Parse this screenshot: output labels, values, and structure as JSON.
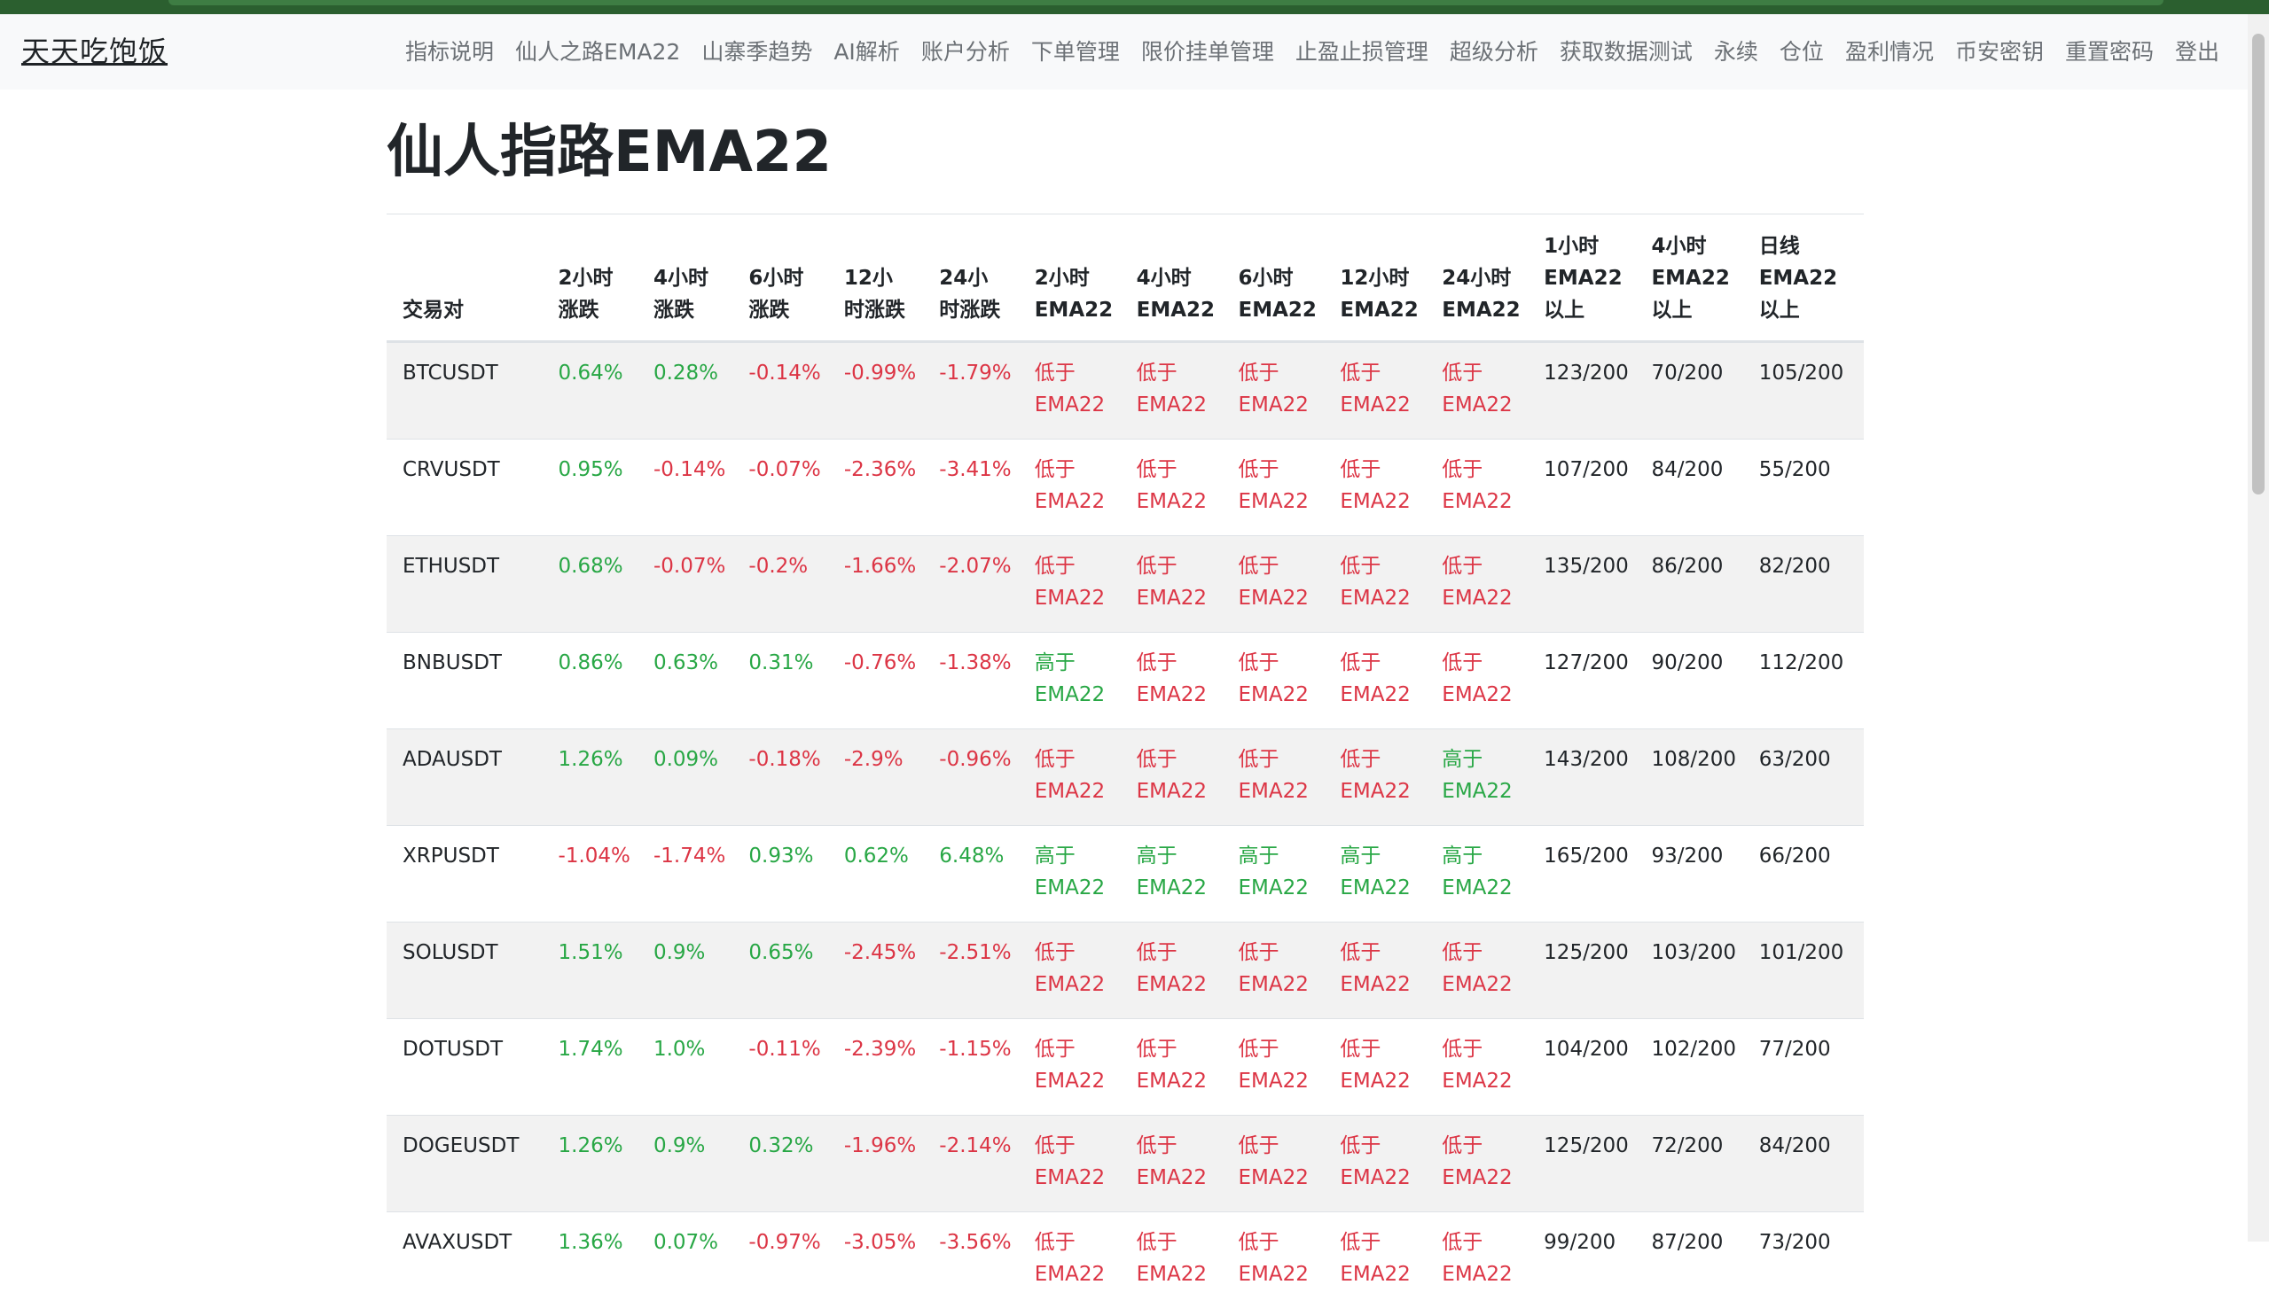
{
  "brand": "天天吃饱饭",
  "nav": [
    "指标说明",
    "仙人之路EMA22",
    "山寨季趋势",
    "AI解析",
    "账户分析",
    "下单管理",
    "限价挂单管理",
    "止盈止损管理",
    "超级分析",
    "获取数据测试",
    "永续",
    "仓位",
    "盈利情况",
    "币安密钥",
    "重置密码",
    "登出"
  ],
  "page_title": "仙人指路EMA22",
  "colors": {
    "positive": "#28a745",
    "negative": "#dc3545",
    "navbar_bg": "#f8f9fa",
    "top_strip": "#2b5f2f",
    "stripe": "#f2f2f2"
  },
  "table": {
    "headers": [
      [
        "交易对"
      ],
      [
        "2小时",
        "涨跌"
      ],
      [
        "4小时",
        "涨跌"
      ],
      [
        "6小时",
        "涨跌"
      ],
      [
        "12小",
        "时涨跌"
      ],
      [
        "24小",
        "时涨跌"
      ],
      [
        "2小时",
        "EMA22"
      ],
      [
        "4小时",
        "EMA22"
      ],
      [
        "6小时",
        "EMA22"
      ],
      [
        "12小时",
        "EMA22"
      ],
      [
        "24小时",
        "EMA22"
      ],
      [
        "1小时",
        "EMA22",
        "以上"
      ],
      [
        "4小时",
        "EMA22",
        "以上"
      ],
      [
        "日线",
        "EMA22",
        "以上"
      ]
    ],
    "status_labels": {
      "below": [
        "低于",
        "EMA22"
      ],
      "above": [
        "高于",
        "EMA22"
      ]
    },
    "rows": [
      {
        "pair": "BTCUSDT",
        "changes": [
          "0.64%",
          "0.28%",
          "-0.14%",
          "-0.99%",
          "-1.79%"
        ],
        "ema": [
          "below",
          "below",
          "below",
          "below",
          "below"
        ],
        "counts": [
          "123/200",
          "70/200",
          "105/200"
        ]
      },
      {
        "pair": "CRVUSDT",
        "changes": [
          "0.95%",
          "-0.14%",
          "-0.07%",
          "-2.36%",
          "-3.41%"
        ],
        "ema": [
          "below",
          "below",
          "below",
          "below",
          "below"
        ],
        "counts": [
          "107/200",
          "84/200",
          "55/200"
        ]
      },
      {
        "pair": "ETHUSDT",
        "changes": [
          "0.68%",
          "-0.07%",
          "-0.2%",
          "-1.66%",
          "-2.07%"
        ],
        "ema": [
          "below",
          "below",
          "below",
          "below",
          "below"
        ],
        "counts": [
          "135/200",
          "86/200",
          "82/200"
        ]
      },
      {
        "pair": "BNBUSDT",
        "changes": [
          "0.86%",
          "0.63%",
          "0.31%",
          "-0.76%",
          "-1.38%"
        ],
        "ema": [
          "above",
          "below",
          "below",
          "below",
          "below"
        ],
        "counts": [
          "127/200",
          "90/200",
          "112/200"
        ]
      },
      {
        "pair": "ADAUSDT",
        "changes": [
          "1.26%",
          "0.09%",
          "-0.18%",
          "-2.9%",
          "-0.96%"
        ],
        "ema": [
          "below",
          "below",
          "below",
          "below",
          "above"
        ],
        "counts": [
          "143/200",
          "108/200",
          "63/200"
        ]
      },
      {
        "pair": "XRPUSDT",
        "changes": [
          "-1.04%",
          "-1.74%",
          "0.93%",
          "0.62%",
          "6.48%"
        ],
        "ema": [
          "above",
          "above",
          "above",
          "above",
          "above"
        ],
        "counts": [
          "165/200",
          "93/200",
          "66/200"
        ]
      },
      {
        "pair": "SOLUSDT",
        "changes": [
          "1.51%",
          "0.9%",
          "0.65%",
          "-2.45%",
          "-2.51%"
        ],
        "ema": [
          "below",
          "below",
          "below",
          "below",
          "below"
        ],
        "counts": [
          "125/200",
          "103/200",
          "101/200"
        ]
      },
      {
        "pair": "DOTUSDT",
        "changes": [
          "1.74%",
          "1.0%",
          "-0.11%",
          "-2.39%",
          "-1.15%"
        ],
        "ema": [
          "below",
          "below",
          "below",
          "below",
          "below"
        ],
        "counts": [
          "104/200",
          "102/200",
          "77/200"
        ]
      },
      {
        "pair": "DOGEUSDT",
        "changes": [
          "1.26%",
          "0.9%",
          "0.32%",
          "-1.96%",
          "-2.14%"
        ],
        "ema": [
          "below",
          "below",
          "below",
          "below",
          "below"
        ],
        "counts": [
          "125/200",
          "72/200",
          "84/200"
        ]
      },
      {
        "pair": "AVAXUSDT",
        "changes": [
          "1.36%",
          "0.07%",
          "-0.97%",
          "-3.05%",
          "-3.56%"
        ],
        "ema": [
          "below",
          "below",
          "below",
          "below",
          "below"
        ],
        "counts": [
          "99/200",
          "87/200",
          "73/200"
        ]
      }
    ]
  }
}
